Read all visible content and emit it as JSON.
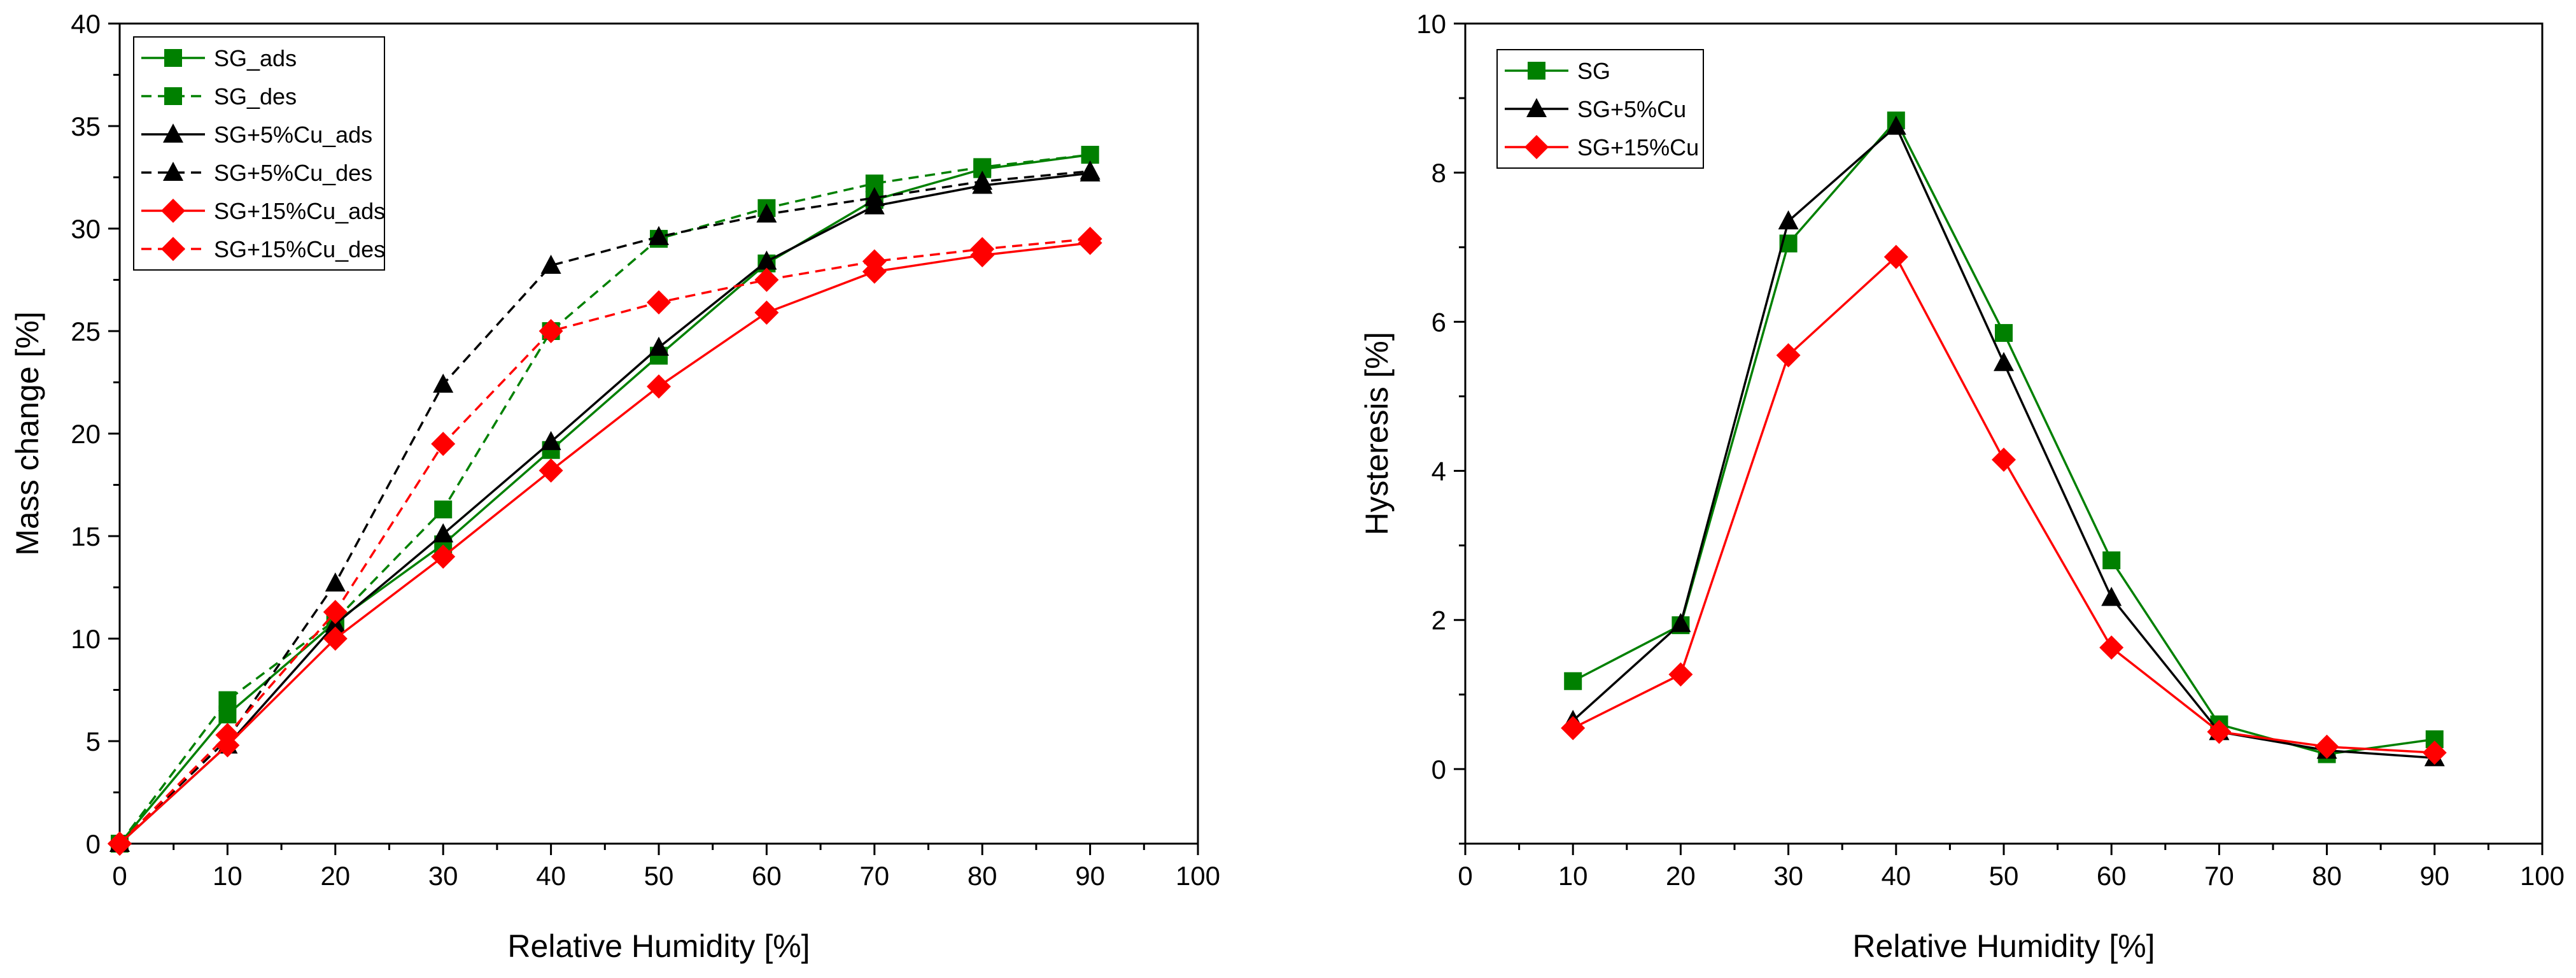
{
  "chart_data": [
    {
      "type": "line",
      "title": "",
      "xlabel": "Relative Humidity [%]",
      "ylabel": "Mass change [%]",
      "xlim": [
        0,
        100
      ],
      "ylim": [
        0,
        40
      ],
      "xticks": [
        0,
        10,
        20,
        30,
        40,
        50,
        60,
        70,
        80,
        90,
        100
      ],
      "yticks": [
        0,
        5,
        10,
        15,
        20,
        25,
        30,
        35,
        40
      ],
      "legend_position": "top-left",
      "series": [
        {
          "name": "SG_ads",
          "color": "#008000",
          "dash": "solid",
          "marker": "square",
          "x": [
            0,
            10,
            20,
            30,
            40,
            50,
            60,
            70,
            80,
            90
          ],
          "y": [
            0,
            6.3,
            10.8,
            14.6,
            19.2,
            23.8,
            28.3,
            31.4,
            32.9,
            33.6
          ]
        },
        {
          "name": "SG_des",
          "color": "#008000",
          "dash": "dashed",
          "marker": "square",
          "x": [
            0,
            10,
            20,
            30,
            40,
            50,
            60,
            70,
            80,
            90
          ],
          "y": [
            0,
            7.0,
            10.9,
            16.3,
            25.0,
            29.5,
            31.0,
            32.2,
            33.0,
            33.6
          ]
        },
        {
          "name": "SG+5%Cu_ads",
          "color": "#000000",
          "dash": "solid",
          "marker": "triangle",
          "x": [
            0,
            10,
            20,
            30,
            40,
            50,
            60,
            70,
            80,
            90
          ],
          "y": [
            0,
            4.8,
            10.7,
            15.1,
            19.6,
            24.2,
            28.4,
            31.1,
            32.1,
            32.7
          ]
        },
        {
          "name": "SG+5%Cu_des",
          "color": "#000000",
          "dash": "dashed",
          "marker": "triangle",
          "x": [
            0,
            10,
            20,
            30,
            40,
            50,
            60,
            70,
            80,
            90
          ],
          "y": [
            0,
            5.1,
            12.7,
            22.4,
            28.2,
            29.6,
            30.7,
            31.5,
            32.3,
            32.8
          ]
        },
        {
          "name": "SG+15%Cu_ads",
          "color": "#ff0000",
          "dash": "solid",
          "marker": "diamond",
          "x": [
            0,
            10,
            20,
            30,
            40,
            50,
            60,
            70,
            80,
            90
          ],
          "y": [
            0,
            4.8,
            10.0,
            14.0,
            18.2,
            22.3,
            25.9,
            27.9,
            28.7,
            29.3
          ]
        },
        {
          "name": "SG+15%Cu_des",
          "color": "#ff0000",
          "dash": "dashed",
          "marker": "diamond",
          "x": [
            0,
            10,
            20,
            30,
            40,
            50,
            60,
            70,
            80,
            90
          ],
          "y": [
            0,
            5.3,
            11.3,
            19.5,
            25.0,
            26.4,
            27.5,
            28.4,
            29.0,
            29.5
          ]
        }
      ]
    },
    {
      "type": "line",
      "title": "",
      "xlabel": "Relative Humidity [%]",
      "ylabel": "Hysteresis [%]",
      "xlim": [
        0,
        100
      ],
      "ylim": [
        -1,
        10
      ],
      "xticks": [
        0,
        10,
        20,
        30,
        40,
        50,
        60,
        70,
        80,
        90,
        100
      ],
      "yticks": [
        0,
        2,
        4,
        6,
        8,
        10
      ],
      "legend_position": "top-left",
      "series": [
        {
          "name": "SG",
          "color": "#008000",
          "dash": "solid",
          "marker": "square",
          "x": [
            10,
            20,
            30,
            40,
            50,
            60,
            70,
            80,
            90
          ],
          "y": [
            1.18,
            1.93,
            7.05,
            8.7,
            5.85,
            2.8,
            0.6,
            0.2,
            0.4
          ]
        },
        {
          "name": "SG+5%Cu",
          "color": "#000000",
          "dash": "solid",
          "marker": "triangle",
          "x": [
            10,
            20,
            30,
            40,
            50,
            60,
            70,
            80,
            90
          ],
          "y": [
            0.65,
            1.95,
            7.35,
            8.62,
            5.45,
            2.3,
            0.5,
            0.25,
            0.15
          ]
        },
        {
          "name": "SG+15%Cu",
          "color": "#ff0000",
          "dash": "solid",
          "marker": "diamond",
          "x": [
            10,
            20,
            30,
            40,
            50,
            60,
            70,
            80,
            90
          ],
          "y": [
            0.55,
            1.27,
            5.55,
            6.87,
            4.15,
            1.63,
            0.5,
            0.3,
            0.22
          ]
        }
      ]
    }
  ]
}
